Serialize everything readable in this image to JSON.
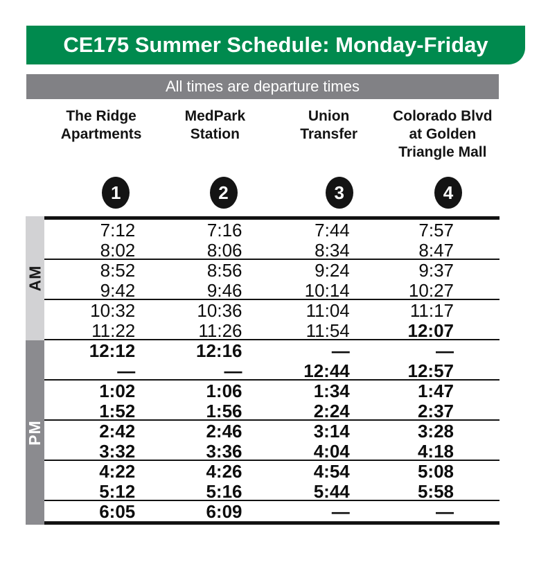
{
  "title": "CE175 Summer Schedule: Monday-Friday",
  "note": "All times are departure times",
  "stops": [
    {
      "name": "The Ridge Apartments",
      "lines": [
        "The Ridge",
        "Apartments"
      ],
      "number": "1"
    },
    {
      "name": "MedPark Station",
      "lines": [
        "MedPark",
        "Station"
      ],
      "number": "2"
    },
    {
      "name": "Union Transfer",
      "lines": [
        "Union",
        "Transfer"
      ],
      "number": "3"
    },
    {
      "name": "Colorado Blvd at Golden Triangle Mall",
      "lines": [
        "Colorado Blvd",
        "at Golden",
        "Triangle Mall"
      ],
      "number": "4"
    }
  ],
  "schedule": {
    "sections": [
      {
        "label": "AM",
        "row_count": 6
      },
      {
        "label": "PM",
        "row_count": 9
      }
    ],
    "rows": [
      {
        "times": [
          "7:12",
          "7:16",
          "7:44",
          "7:57"
        ],
        "bold": [
          false,
          false,
          false,
          false
        ],
        "separator_after": false
      },
      {
        "times": [
          "8:02",
          "8:06",
          "8:34",
          "8:47"
        ],
        "bold": [
          false,
          false,
          false,
          false
        ],
        "separator_after": true
      },
      {
        "times": [
          "8:52",
          "8:56",
          "9:24",
          "9:37"
        ],
        "bold": [
          false,
          false,
          false,
          false
        ],
        "separator_after": false
      },
      {
        "times": [
          "9:42",
          "9:46",
          "10:14",
          "10:27"
        ],
        "bold": [
          false,
          false,
          false,
          false
        ],
        "separator_after": true
      },
      {
        "times": [
          "10:32",
          "10:36",
          "11:04",
          "11:17"
        ],
        "bold": [
          false,
          false,
          false,
          false
        ],
        "separator_after": false
      },
      {
        "times": [
          "11:22",
          "11:26",
          "11:54",
          "12:07"
        ],
        "bold": [
          false,
          false,
          false,
          true
        ],
        "separator_after": true
      },
      {
        "times": [
          "12:12",
          "12:16",
          "—",
          "—"
        ],
        "bold": [
          true,
          true,
          true,
          true
        ],
        "separator_after": false
      },
      {
        "times": [
          "—",
          "—",
          "12:44",
          "12:57"
        ],
        "bold": [
          true,
          true,
          true,
          true
        ],
        "separator_after": true
      },
      {
        "times": [
          "1:02",
          "1:06",
          "1:34",
          "1:47"
        ],
        "bold": [
          true,
          true,
          true,
          true
        ],
        "separator_after": false
      },
      {
        "times": [
          "1:52",
          "1:56",
          "2:24",
          "2:37"
        ],
        "bold": [
          true,
          true,
          true,
          true
        ],
        "separator_after": true
      },
      {
        "times": [
          "2:42",
          "2:46",
          "3:14",
          "3:28"
        ],
        "bold": [
          true,
          true,
          true,
          true
        ],
        "separator_after": false
      },
      {
        "times": [
          "3:32",
          "3:36",
          "4:04",
          "4:18"
        ],
        "bold": [
          true,
          true,
          true,
          true
        ],
        "separator_after": true
      },
      {
        "times": [
          "4:22",
          "4:26",
          "4:54",
          "5:08"
        ],
        "bold": [
          true,
          true,
          true,
          true
        ],
        "separator_after": false
      },
      {
        "times": [
          "5:12",
          "5:16",
          "5:44",
          "5:58"
        ],
        "bold": [
          true,
          true,
          true,
          true
        ],
        "separator_after": true
      },
      {
        "times": [
          "6:05",
          "6:09",
          "—",
          "—"
        ],
        "bold": [
          true,
          true,
          true,
          true
        ],
        "separator_after": false
      }
    ]
  },
  "colors": {
    "green": "#008a4e",
    "note_gray": "#818185",
    "am_gray": "#d2d2d4",
    "pm_gray": "#8b8b8f"
  }
}
